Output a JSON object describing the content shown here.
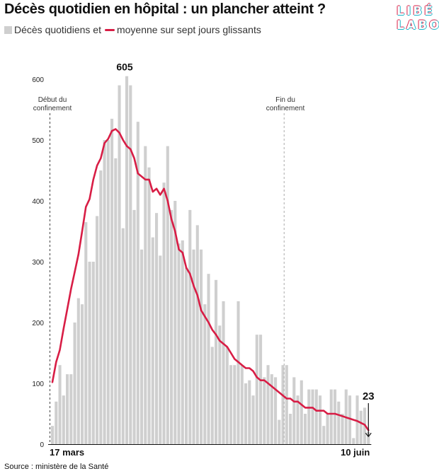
{
  "title": "Décès quotidien en hôpital : un plancher atteint ?",
  "legend": {
    "bars_label": "Décès quotidiens et",
    "line_label": "moyenne sur sept jours glissants"
  },
  "logo": {
    "line1": "LIBÉ",
    "line2": "LABO"
  },
  "source": "Source : ministère de la Santé",
  "colors": {
    "bars": "#cfcfcf",
    "line": "#d81d45",
    "text": "#111111"
  },
  "chart_data": {
    "type": "bar",
    "x_start_label": "17 mars",
    "x_end_label": "10 juin",
    "ylim": [
      0,
      600
    ],
    "yticks": [
      0,
      100,
      200,
      300,
      400,
      500,
      600
    ],
    "grid": false,
    "values": [
      30,
      70,
      130,
      80,
      115,
      115,
      200,
      240,
      230,
      365,
      300,
      300,
      375,
      450,
      500,
      500,
      535,
      470,
      590,
      355,
      605,
      590,
      385,
      530,
      320,
      490,
      455,
      340,
      380,
      310,
      430,
      490,
      385,
      400,
      330,
      335,
      290,
      385,
      320,
      360,
      320,
      230,
      280,
      160,
      270,
      195,
      235,
      160,
      130,
      130,
      235,
      130,
      100,
      105,
      80,
      180,
      180,
      110,
      130,
      115,
      110,
      40,
      130,
      130,
      50,
      110,
      80,
      105,
      50,
      90,
      90,
      90,
      80,
      30,
      50,
      90,
      90,
      70,
      50,
      90,
      80,
      10,
      80,
      55,
      60,
      20
    ],
    "series": [
      {
        "name": "moyenne sur sept jours glissants",
        "values": [
          102,
          135,
          155,
          190,
          222,
          255,
          283,
          312,
          350,
          390,
          403,
          435,
          458,
          470,
          495,
          502,
          515,
          518,
          512,
          500,
          490,
          485,
          470,
          445,
          440,
          435,
          435,
          415,
          420,
          410,
          420,
          400,
          370,
          350,
          320,
          315,
          290,
          280,
          260,
          245,
          220,
          210,
          200,
          188,
          180,
          170,
          165,
          160,
          150,
          140,
          135,
          130,
          125,
          125,
          120,
          110,
          105,
          105,
          100,
          95,
          90,
          85,
          80,
          75,
          75,
          70,
          70,
          65,
          60,
          60,
          60,
          55,
          55,
          55,
          50,
          50,
          50,
          48,
          46,
          44,
          42,
          40,
          38,
          35,
          32,
          23
        ]
      }
    ],
    "annotations": [
      {
        "label": "605",
        "value": 605
      },
      {
        "label": "23",
        "value": 23
      },
      {
        "label": "Début du confinement"
      },
      {
        "label": "Fin du confinement"
      }
    ]
  }
}
